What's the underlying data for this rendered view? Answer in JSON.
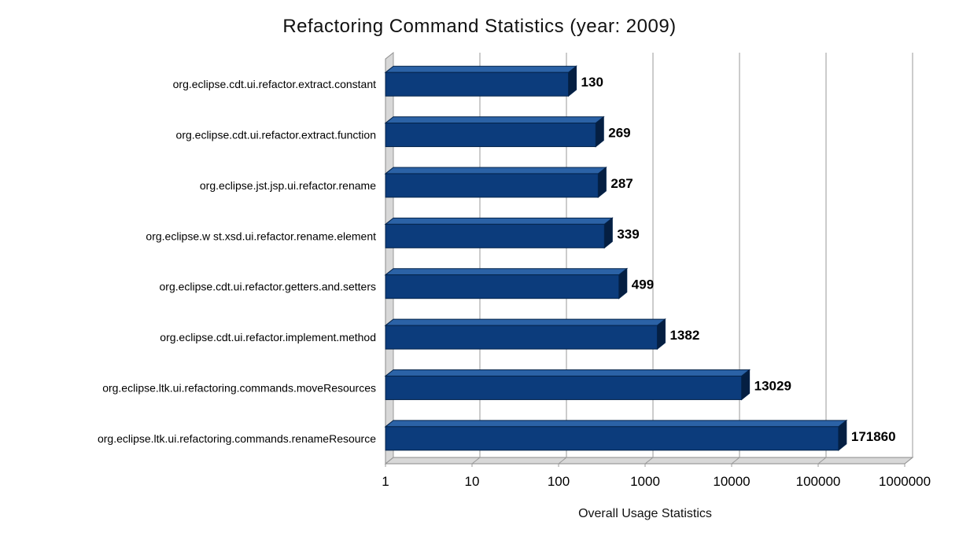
{
  "chart_data": {
    "type": "bar",
    "orientation": "horizontal",
    "x_scale": "log",
    "title": "Refactoring Command Statistics (year: 2009)",
    "xlabel": "Overall Usage Statistics",
    "ylabel": "",
    "xlim": [
      1,
      1000000
    ],
    "x_ticks": [
      1,
      10,
      100,
      1000,
      10000,
      100000,
      1000000
    ],
    "x_tick_labels": [
      "1",
      "10",
      "100",
      "1000",
      "10000",
      "100000",
      "1000000"
    ],
    "grid": true,
    "legend": false,
    "categories": [
      "org.eclipse.cdt.ui.refactor.extract.constant",
      "org.eclipse.cdt.ui.refactor.extract.function",
      "org.eclipse.jst.jsp.ui.refactor.rename",
      "org.eclipse.w st.xsd.ui.refactor.rename.element",
      "org.eclipse.cdt.ui.refactor.getters.and.setters",
      "org.eclipse.cdt.ui.refactor.implement.method",
      "org.eclipse.ltk.ui.refactoring.commands.moveResources",
      "org.eclipse.ltk.ui.refactoring.commands.renameResource"
    ],
    "values": [
      130,
      269,
      287,
      339,
      499,
      1382,
      13029,
      171860
    ],
    "value_labels": [
      "130",
      "269",
      "287",
      "339",
      "499",
      "1382",
      "13029",
      "171860"
    ],
    "colors": {
      "bar_front": "#0c3c7c",
      "bar_top": "#2b62a6",
      "bar_side": "#051f42",
      "bar_outline": "#04234a",
      "grid": "#999999",
      "wall_fill": "#d8d8d8",
      "wall_stroke": "#8a8a8a",
      "background": "#ffffff",
      "text": "#000000"
    }
  }
}
